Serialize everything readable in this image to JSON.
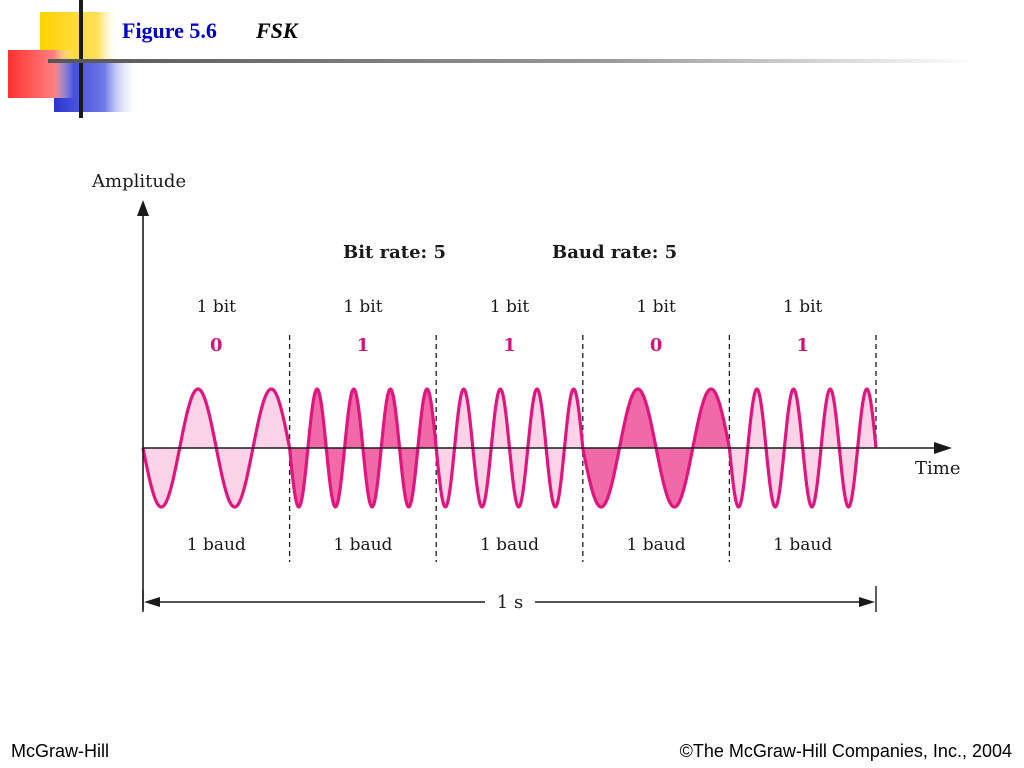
{
  "slide": {
    "figure_number": "Figure 5.6",
    "figure_title": "FSK"
  },
  "diagram": {
    "y_axis_label": "Amplitude",
    "x_axis_label": "Time",
    "bit_rate_label": "Bit rate: 5",
    "baud_rate_label": "Baud rate: 5",
    "duration_label": "1 s",
    "segments": [
      {
        "bit_label": "1 bit",
        "bit_value": "0",
        "baud_label": "1 baud",
        "cycles": 2,
        "shade": "light"
      },
      {
        "bit_label": "1 bit",
        "bit_value": "1",
        "baud_label": "1 baud",
        "cycles": 4,
        "shade": "dark"
      },
      {
        "bit_label": "1 bit",
        "bit_value": "1",
        "baud_label": "1 baud",
        "cycles": 4,
        "shade": "light"
      },
      {
        "bit_label": "1 bit",
        "bit_value": "0",
        "baud_label": "1 baud",
        "cycles": 2,
        "shade": "dark"
      },
      {
        "bit_label": "1 bit",
        "bit_value": "1",
        "baud_label": "1 baud",
        "cycles": 4,
        "shade": "light"
      }
    ],
    "colors": {
      "wave_stroke": "#e0157f",
      "fill_light": "#fbd3e6",
      "fill_dark": "#f06aa8",
      "bit_value": "#d4147a",
      "axis": "#1a1a1a"
    }
  },
  "footer": {
    "left": "McGraw-Hill",
    "right": "©The McGraw-Hill Companies, Inc., 2004"
  }
}
